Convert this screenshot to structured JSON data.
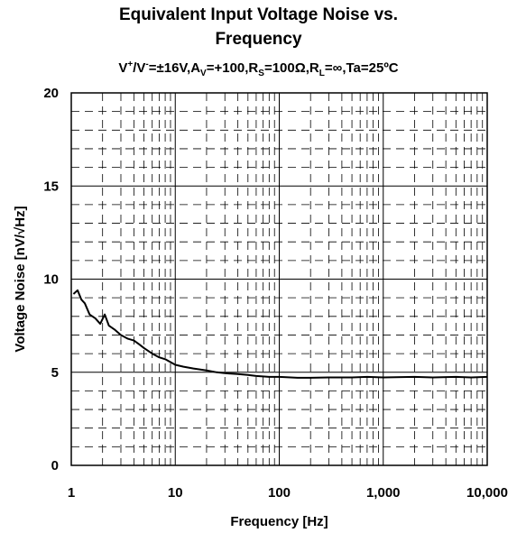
{
  "chart_data": {
    "type": "line",
    "title_line1": "Equivalent Input Voltage Noise vs.",
    "title_line2": "Frequency",
    "subtitle": {
      "p1": "V",
      "p2": "+",
      "p3": "/V",
      "p4": "-",
      "p5": "=±16V,A",
      "p6": "V",
      "p7": "=+100,R",
      "p8": "S",
      "p9": "=100Ω,R",
      "p10": "L",
      "p11": "=∞,Ta=25ºC"
    },
    "xlabel": "Frequency [Hz]",
    "ylabel": "Voltage Noise [nV/√Hz]",
    "x_scale": "log",
    "xlim": [
      1,
      10000
    ],
    "ylim": [
      0,
      20
    ],
    "x_ticks": [
      "1",
      "10",
      "100",
      "1,000",
      "10,000"
    ],
    "y_ticks": [
      "0",
      "5",
      "10",
      "15",
      "20"
    ],
    "grid": "major solid, minor dashed",
    "series": [
      {
        "x": [
          1.05,
          1.15,
          1.25,
          1.35,
          1.5,
          1.7,
          1.9,
          2.1,
          2.3,
          2.6,
          3.0,
          3.5,
          4.0,
          4.5,
          5.0,
          6.0,
          7.0,
          8.0,
          10,
          12,
          15,
          20,
          25,
          30,
          40,
          50,
          60,
          80,
          100,
          150,
          200,
          300,
          500,
          700,
          1000,
          2000,
          3000,
          5000,
          7000,
          10000
        ],
        "y": [
          9.2,
          9.4,
          8.9,
          8.7,
          8.1,
          7.9,
          7.6,
          8.1,
          7.5,
          7.3,
          7.0,
          6.8,
          6.7,
          6.5,
          6.3,
          6.0,
          5.8,
          5.7,
          5.4,
          5.3,
          5.2,
          5.1,
          5.0,
          4.95,
          4.9,
          4.85,
          4.8,
          4.75,
          4.75,
          4.7,
          4.7,
          4.72,
          4.72,
          4.75,
          4.72,
          4.75,
          4.72,
          4.75,
          4.72,
          4.75
        ]
      }
    ]
  }
}
